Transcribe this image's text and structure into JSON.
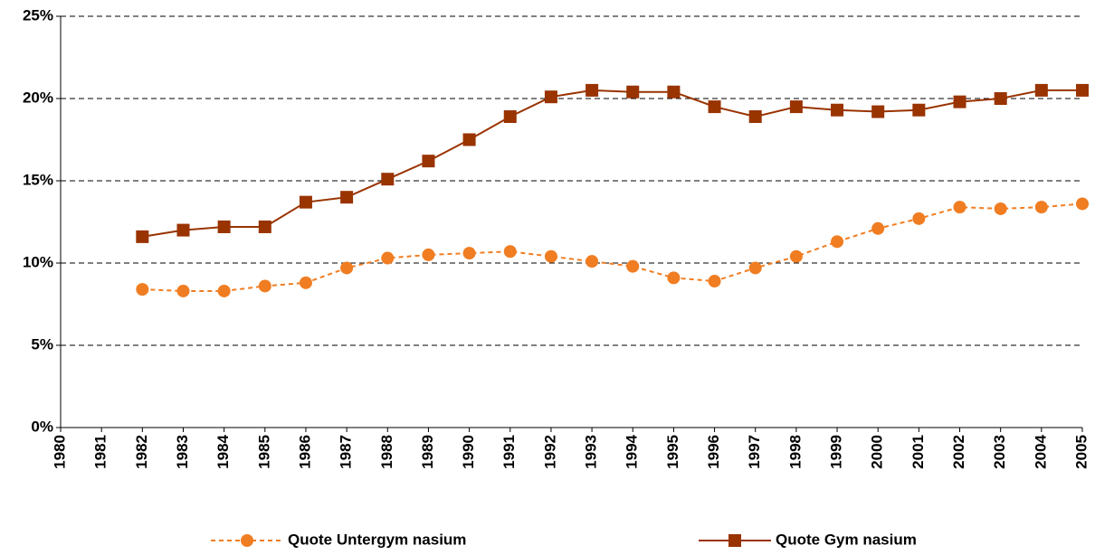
{
  "chart_data": {
    "type": "line",
    "categories": [
      "1980",
      "1981",
      "1982",
      "1983",
      "1984",
      "1985",
      "1986",
      "1987",
      "1988",
      "1989",
      "1990",
      "1991",
      "1992",
      "1993",
      "1994",
      "1995",
      "1996",
      "1997",
      "1998",
      "1999",
      "2000",
      "2001",
      "2002",
      "2003",
      "2004",
      "2005"
    ],
    "series": [
      {
        "name": "Quote Untergym nasium",
        "color": "#f07d22",
        "marker": "circle",
        "dash": true,
        "values": [
          null,
          null,
          8.4,
          8.3,
          8.3,
          8.6,
          8.8,
          9.7,
          10.3,
          10.5,
          10.6,
          10.7,
          10.4,
          10.1,
          9.8,
          9.1,
          8.9,
          9.7,
          10.4,
          11.3,
          12.1,
          12.7,
          13.4,
          13.3,
          13.4,
          13.6
        ]
      },
      {
        "name": "Quote Gym nasium",
        "color": "#993300",
        "marker": "square",
        "dash": false,
        "values": [
          null,
          null,
          11.6,
          12.0,
          12.2,
          12.2,
          13.7,
          14.0,
          15.1,
          16.2,
          17.5,
          18.9,
          20.1,
          20.5,
          20.4,
          20.4,
          19.5,
          18.9,
          19.5,
          19.3,
          19.2,
          19.3,
          19.8,
          20.0,
          20.5,
          20.5
        ]
      }
    ],
    "ylim": [
      0,
      25
    ],
    "yticks": [
      {
        "value": 0,
        "label": "0%"
      },
      {
        "value": 5,
        "label": "5%"
      },
      {
        "value": 10,
        "label": "10%"
      },
      {
        "value": 15,
        "label": "15%"
      },
      {
        "value": 20,
        "label": "20%"
      },
      {
        "value": 25,
        "label": "25%"
      }
    ],
    "grid": true,
    "legend": "bottom"
  }
}
